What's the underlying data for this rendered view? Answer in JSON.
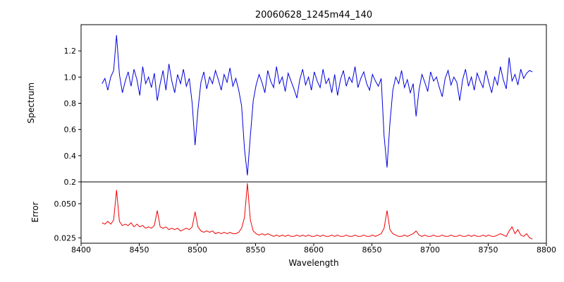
{
  "chart_data": {
    "type": "line",
    "title": "20060628_1245m44_140",
    "xlabel": "Wavelength",
    "xlim": [
      8400,
      8800
    ],
    "xticks": [
      8400,
      8450,
      8500,
      8550,
      8600,
      8650,
      8700,
      8750,
      8800
    ],
    "xtick_labels": [
      "8400",
      "8450",
      "8500",
      "8550",
      "8600",
      "8650",
      "8700",
      "8750",
      "8800"
    ],
    "grid": false,
    "legend": null,
    "x": [
      8418,
      8420.5,
      8423,
      8425.5,
      8428,
      8430.5,
      8433,
      8435.5,
      8438,
      8440.5,
      8443,
      8445.5,
      8448,
      8450.5,
      8453,
      8455.5,
      8458,
      8460.5,
      8463,
      8465.5,
      8468,
      8470.5,
      8473,
      8475.5,
      8478,
      8480.5,
      8483,
      8485.5,
      8488,
      8490.5,
      8493,
      8495.5,
      8498,
      8500.5,
      8503,
      8505.5,
      8508,
      8510.5,
      8513,
      8515.5,
      8518,
      8520.5,
      8523,
      8525.5,
      8528,
      8530.5,
      8533,
      8535.5,
      8538,
      8540.5,
      8543,
      8545.5,
      8548,
      8550.5,
      8553,
      8555.5,
      8558,
      8560.5,
      8563,
      8565.5,
      8568,
      8570.5,
      8573,
      8575.5,
      8578,
      8580.5,
      8583,
      8585.5,
      8588,
      8590.5,
      8593,
      8595.5,
      8598,
      8600.5,
      8603,
      8605.5,
      8608,
      8610.5,
      8613,
      8615.5,
      8618,
      8620.5,
      8623,
      8625.5,
      8628,
      8630.5,
      8633,
      8635.5,
      8638,
      8640.5,
      8643,
      8645.5,
      8648,
      8650.5,
      8653,
      8655.5,
      8658,
      8660.5,
      8663,
      8665.5,
      8668,
      8670.5,
      8673,
      8675.5,
      8678,
      8680.5,
      8683,
      8685.5,
      8688,
      8690.5,
      8693,
      8695.5,
      8698,
      8700.5,
      8703,
      8705.5,
      8708,
      8710.5,
      8713,
      8715.5,
      8718,
      8720.5,
      8723,
      8725.5,
      8728,
      8730.5,
      8733,
      8735.5,
      8738,
      8740.5,
      8743,
      8745.5,
      8748,
      8750.5,
      8753,
      8755.5,
      8758,
      8760.5,
      8763,
      8765.5,
      8768,
      8770.5,
      8773,
      8775.5,
      8778,
      8780.5,
      8783,
      8785.5,
      8788
    ],
    "panels": [
      {
        "ylabel": "Spectrum",
        "color": "#0000dd",
        "ylim": [
          0.2,
          1.4
        ],
        "yticks": [
          0.2,
          0.4,
          0.6,
          0.8,
          1.0,
          1.2
        ],
        "ytick_labels": [
          "0.2",
          "0.4",
          "0.6",
          "0.8",
          "1.0",
          "1.2"
        ],
        "features": "absorption lines near 8498, 8542, 8662 (Ca II triplet), 8688; emission-like spike near 8430",
        "values": [
          0.95,
          0.99,
          0.9,
          1.0,
          1.05,
          1.32,
          1.02,
          0.88,
          0.97,
          1.04,
          0.93,
          1.06,
          0.98,
          0.86,
          1.08,
          0.95,
          1.0,
          0.92,
          1.03,
          0.82,
          0.95,
          1.05,
          0.9,
          1.1,
          0.97,
          0.88,
          1.02,
          0.95,
          1.06,
          0.93,
          0.99,
          0.8,
          0.48,
          0.75,
          0.96,
          1.04,
          0.91,
          1.0,
          0.95,
          1.05,
          0.98,
          0.9,
          1.02,
          0.96,
          1.07,
          0.93,
          0.99,
          0.9,
          0.78,
          0.45,
          0.25,
          0.55,
          0.82,
          0.94,
          1.02,
          0.96,
          0.88,
          1.05,
          0.97,
          0.92,
          1.08,
          0.95,
          1.0,
          0.89,
          1.03,
          0.97,
          0.91,
          0.84,
          0.98,
          1.06,
          0.94,
          1.0,
          0.9,
          1.04,
          0.97,
          0.92,
          1.06,
          0.95,
          0.99,
          0.88,
          1.02,
          0.86,
          0.98,
          1.05,
          0.93,
          1.0,
          0.96,
          1.08,
          0.92,
          0.99,
          1.04,
          0.95,
          0.9,
          1.02,
          0.97,
          0.93,
          0.99,
          0.55,
          0.31,
          0.65,
          0.9,
          1.0,
          0.95,
          1.05,
          0.92,
          0.98,
          0.88,
          0.95,
          0.7,
          0.9,
          1.02,
          0.96,
          0.89,
          1.04,
          0.97,
          1.0,
          0.92,
          0.85,
          0.99,
          1.05,
          0.94,
          1.0,
          0.96,
          0.82,
          0.98,
          1.06,
          0.93,
          1.0,
          0.9,
          1.03,
          0.97,
          0.92,
          1.05,
          0.96,
          0.88,
          1.0,
          0.94,
          1.08,
          0.98,
          0.91,
          1.15,
          0.97,
          1.02,
          0.94,
          1.06,
          0.99,
          1.03,
          1.05,
          1.04
        ]
      },
      {
        "ylabel": "Error",
        "color": "#ee0000",
        "ylim": [
          0.021,
          0.066
        ],
        "yticks": [
          0.025,
          0.05
        ],
        "ytick_labels": [
          "0.025",
          "0.050"
        ],
        "features": "error spikes at same wavelengths as spectral lines; baseline declines from ~0.036 to ~0.025",
        "values": [
          0.036,
          0.035,
          0.037,
          0.035,
          0.038,
          0.06,
          0.037,
          0.034,
          0.035,
          0.034,
          0.036,
          0.033,
          0.035,
          0.033,
          0.034,
          0.032,
          0.033,
          0.032,
          0.034,
          0.045,
          0.033,
          0.032,
          0.033,
          0.031,
          0.032,
          0.031,
          0.032,
          0.03,
          0.031,
          0.032,
          0.031,
          0.033,
          0.044,
          0.033,
          0.03,
          0.029,
          0.03,
          0.029,
          0.03,
          0.028,
          0.029,
          0.028,
          0.029,
          0.028,
          0.029,
          0.028,
          0.028,
          0.029,
          0.032,
          0.04,
          0.065,
          0.038,
          0.03,
          0.028,
          0.027,
          0.028,
          0.027,
          0.028,
          0.027,
          0.026,
          0.027,
          0.026,
          0.027,
          0.026,
          0.027,
          0.026,
          0.026,
          0.027,
          0.026,
          0.027,
          0.026,
          0.027,
          0.026,
          0.026,
          0.027,
          0.026,
          0.027,
          0.026,
          0.026,
          0.027,
          0.026,
          0.027,
          0.026,
          0.026,
          0.027,
          0.026,
          0.026,
          0.027,
          0.026,
          0.026,
          0.027,
          0.026,
          0.026,
          0.027,
          0.026,
          0.027,
          0.028,
          0.032,
          0.045,
          0.031,
          0.028,
          0.027,
          0.026,
          0.026,
          0.027,
          0.026,
          0.027,
          0.028,
          0.03,
          0.027,
          0.026,
          0.027,
          0.026,
          0.026,
          0.027,
          0.026,
          0.026,
          0.027,
          0.026,
          0.026,
          0.027,
          0.026,
          0.026,
          0.027,
          0.026,
          0.026,
          0.027,
          0.026,
          0.027,
          0.026,
          0.026,
          0.027,
          0.026,
          0.027,
          0.026,
          0.026,
          0.027,
          0.028,
          0.027,
          0.026,
          0.03,
          0.033,
          0.028,
          0.031,
          0.027,
          0.026,
          0.028,
          0.025,
          0.024
        ]
      }
    ]
  }
}
